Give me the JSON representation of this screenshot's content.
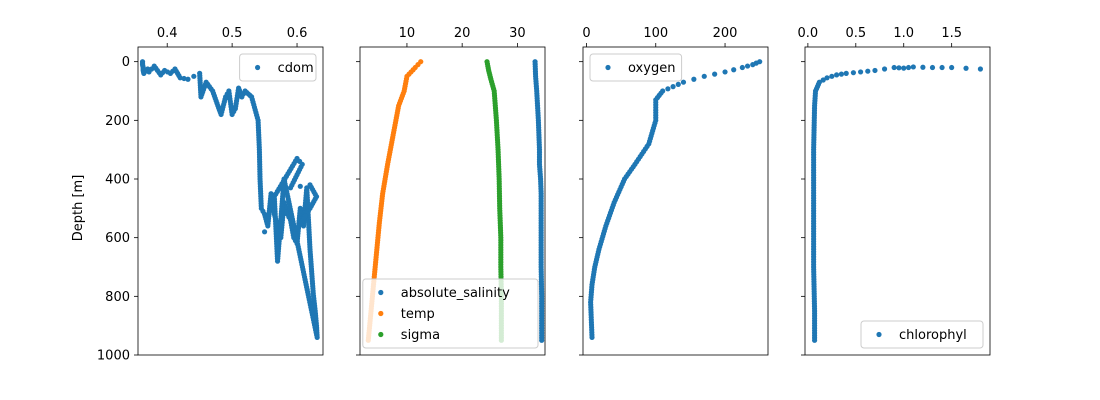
{
  "figure": {
    "shared_ylabel": "Depth [m]"
  },
  "chart_data": [
    {
      "type": "scatter",
      "xlabel": "",
      "ylabel": "Depth [m]",
      "xlim": [
        0.355,
        0.64
      ],
      "ylim": [
        1000,
        -50
      ],
      "xticks": [
        0.4,
        0.5,
        0.6
      ],
      "xtick_labels": [
        "0.4",
        "0.5",
        "0.6"
      ],
      "yticks": [
        0,
        200,
        400,
        600,
        800,
        1000
      ],
      "ytick_labels": [
        "0",
        "200",
        "400",
        "600",
        "800",
        "1000"
      ],
      "show_ytick_labels": true,
      "legend": {
        "position": "upper right"
      },
      "series": [
        {
          "name": "cdom",
          "color": "#1f77b4",
          "points": [
            [
              0.362,
              0
            ],
            [
              0.362,
              10
            ],
            [
              0.363,
              20
            ],
            [
              0.363,
              30
            ],
            [
              0.364,
              40
            ],
            [
              0.37,
              25
            ],
            [
              0.372,
              35
            ],
            [
              0.38,
              15
            ],
            [
              0.39,
              45
            ],
            [
              0.396,
              30
            ],
            [
              0.405,
              40
            ],
            [
              0.412,
              25
            ],
            [
              0.42,
              55
            ],
            [
              0.432,
              60
            ],
            [
              0.45,
              40
            ],
            [
              0.451,
              80
            ],
            [
              0.452,
              120
            ],
            [
              0.46,
              70
            ],
            [
              0.47,
              100
            ],
            [
              0.478,
              150
            ],
            [
              0.483,
              180
            ],
            [
              0.49,
              120
            ],
            [
              0.495,
              100
            ],
            [
              0.5,
              180
            ],
            [
              0.505,
              160
            ],
            [
              0.51,
              90
            ],
            [
              0.515,
              120
            ],
            [
              0.52,
              100
            ],
            [
              0.525,
              110
            ],
            [
              0.53,
              120
            ],
            [
              0.54,
              200
            ],
            [
              0.542,
              300
            ],
            [
              0.543,
              400
            ],
            [
              0.545,
              500
            ],
            [
              0.55,
              520
            ],
            [
              0.555,
              560
            ],
            [
              0.56,
              450
            ],
            [
              0.565,
              520
            ],
            [
              0.57,
              560
            ],
            [
              0.575,
              600
            ],
            [
              0.58,
              480
            ],
            [
              0.585,
              520
            ],
            [
              0.59,
              540
            ],
            [
              0.595,
              600
            ],
            [
              0.6,
              620
            ],
            [
              0.605,
              500
            ],
            [
              0.61,
              560
            ],
            [
              0.615,
              430
            ],
            [
              0.62,
              640
            ],
            [
              0.625,
              790
            ],
            [
              0.628,
              850
            ],
            [
              0.63,
              900
            ],
            [
              0.631,
              940
            ],
            [
              0.58,
              400
            ],
            [
              0.57,
              680
            ],
            [
              0.565,
              460
            ],
            [
              0.6,
              330
            ],
            [
              0.608,
              350
            ],
            [
              0.59,
              430
            ],
            [
              0.62,
              420
            ],
            [
              0.63,
              460
            ],
            [
              0.62,
              500
            ],
            [
              0.6,
              570
            ],
            [
              0.55,
              580
            ]
          ]
        }
      ]
    },
    {
      "type": "scatter",
      "xlabel": "",
      "ylabel": "",
      "xlim": [
        1.5,
        35
      ],
      "ylim": [
        1000,
        -50
      ],
      "xticks": [
        10,
        20,
        30
      ],
      "xtick_labels": [
        "10",
        "20",
        "30"
      ],
      "yticks": [
        0,
        200,
        400,
        600,
        800,
        1000
      ],
      "ytick_labels": [],
      "show_ytick_labels": false,
      "legend": {
        "position": "lower right"
      },
      "series": [
        {
          "name": "absolute_salinity",
          "color": "#1f77b4",
          "points": [
            [
              33.2,
              0
            ],
            [
              33.3,
              50
            ],
            [
              33.5,
              100
            ],
            [
              33.8,
              200
            ],
            [
              34.0,
              300
            ],
            [
              34.0,
              350
            ],
            [
              34.2,
              400
            ],
            [
              34.3,
              450
            ],
            [
              34.3,
              500
            ],
            [
              34.3,
              600
            ],
            [
              34.3,
              700
            ],
            [
              34.4,
              800
            ],
            [
              34.4,
              900
            ],
            [
              34.4,
              950
            ]
          ]
        },
        {
          "name": "temp",
          "color": "#ff7f0e",
          "points": [
            [
              12.5,
              0
            ],
            [
              11.5,
              20
            ],
            [
              10.0,
              50
            ],
            [
              9.5,
              100
            ],
            [
              8.5,
              150
            ],
            [
              7.5,
              250
            ],
            [
              6.5,
              350
            ],
            [
              5.6,
              450
            ],
            [
              5.0,
              550
            ],
            [
              4.5,
              650
            ],
            [
              4.0,
              750
            ],
            [
              3.5,
              850
            ],
            [
              3.0,
              950
            ]
          ]
        },
        {
          "name": "sigma",
          "color": "#2ca02c",
          "points": [
            [
              24.5,
              0
            ],
            [
              24.8,
              30
            ],
            [
              25.2,
              60
            ],
            [
              25.8,
              100
            ],
            [
              26.2,
              200
            ],
            [
              26.5,
              300
            ],
            [
              26.7,
              400
            ],
            [
              26.8,
              500
            ],
            [
              27.0,
              600
            ],
            [
              27.0,
              700
            ],
            [
              27.1,
              800
            ],
            [
              27.1,
              900
            ],
            [
              27.1,
              950
            ]
          ]
        }
      ]
    },
    {
      "type": "scatter",
      "xlabel": "",
      "ylabel": "",
      "xlim": [
        -5,
        262
      ],
      "ylim": [
        1000,
        -50
      ],
      "xticks": [
        0,
        100,
        200
      ],
      "xtick_labels": [
        "0",
        "100",
        "200"
      ],
      "yticks": [
        0,
        200,
        400,
        600,
        800,
        1000
      ],
      "ytick_labels": [],
      "show_ytick_labels": false,
      "legend": {
        "position": "upper left"
      },
      "series": [
        {
          "name": "oxygen",
          "color": "#1f77b4",
          "points": [
            [
              250,
              0
            ],
            [
              240,
              10
            ],
            [
              225,
              20
            ],
            [
              200,
              35
            ],
            [
              170,
              50
            ],
            [
              140,
              70
            ],
            [
              110,
              100
            ],
            [
              100,
              130
            ],
            [
              100,
              200
            ],
            [
              90,
              280
            ],
            [
              70,
              350
            ],
            [
              55,
              400
            ],
            [
              40,
              480
            ],
            [
              28,
              560
            ],
            [
              18,
              640
            ],
            [
              12,
              700
            ],
            [
              8,
              760
            ],
            [
              6,
              820
            ],
            [
              7,
              880
            ],
            [
              8,
              940
            ]
          ]
        }
      ]
    },
    {
      "type": "scatter",
      "xlabel": "",
      "ylabel": "",
      "xlim": [
        -0.03,
        1.9
      ],
      "ylim": [
        1000,
        -50
      ],
      "xticks": [
        0.0,
        0.5,
        1.0,
        1.5
      ],
      "xtick_labels": [
        "0.0",
        "0.5",
        "1.0",
        "1.5"
      ],
      "yticks": [
        0,
        200,
        400,
        600,
        800,
        1000
      ],
      "ytick_labels": [],
      "show_ytick_labels": false,
      "legend": {
        "position": "lower right"
      },
      "series": [
        {
          "name": "chlorophyl",
          "color": "#1f77b4",
          "points": [
            [
              1.8,
              25
            ],
            [
              1.5,
              20
            ],
            [
              1.3,
              20
            ],
            [
              1.1,
              18
            ],
            [
              1.0,
              22
            ],
            [
              0.9,
              20
            ],
            [
              0.7,
              30
            ],
            [
              0.55,
              35
            ],
            [
              0.4,
              40
            ],
            [
              0.3,
              45
            ],
            [
              0.2,
              55
            ],
            [
              0.12,
              70
            ],
            [
              0.08,
              100
            ],
            [
              0.07,
              150
            ],
            [
              0.06,
              300
            ],
            [
              0.06,
              500
            ],
            [
              0.06,
              700
            ],
            [
              0.07,
              850
            ],
            [
              0.07,
              950
            ]
          ]
        }
      ]
    }
  ]
}
